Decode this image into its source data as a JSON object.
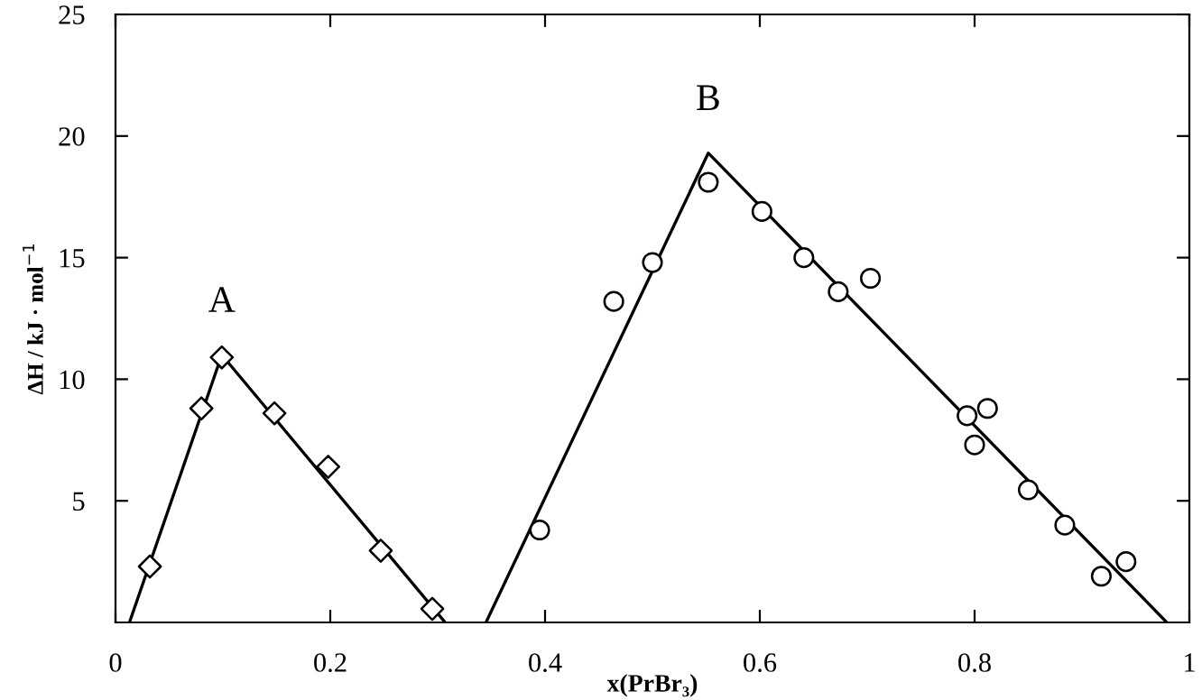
{
  "chart_data": {
    "type": "scatter",
    "xlabel": "x(PrBr₃)",
    "ylabel": "ΔH / kJ · mol$^{−1}$",
    "xlim": [
      0,
      1
    ],
    "ylim": [
      0,
      25
    ],
    "xticks": [
      0,
      0.2,
      0.4,
      0.6,
      0.8,
      1
    ],
    "yticks": [
      5,
      10,
      15,
      20,
      25
    ],
    "grid": false,
    "legend": false,
    "annotations": [
      "A",
      "B"
    ],
    "series": [
      {
        "marker": "diamond",
        "color": "#000000",
        "x": [
          0.032,
          0.08,
          0.099,
          0.148,
          0.198,
          0.247,
          0.295
        ],
        "values": [
          2.3,
          8.8,
          10.9,
          8.6,
          6.4,
          2.95,
          0.56
        ]
      },
      {
        "marker": "circle",
        "color": "#000000",
        "x": [
          0.395,
          0.464,
          0.5,
          0.552,
          0.602,
          0.641,
          0.673,
          0.703,
          0.793,
          0.812,
          0.8,
          0.85,
          0.884,
          0.918,
          0.941
        ],
        "values": [
          3.8,
          13.2,
          14.8,
          18.1,
          16.9,
          15.0,
          13.6,
          14.15,
          8.5,
          8.8,
          7.3,
          5.45,
          4.0,
          1.9,
          2.5
        ]
      },
      {
        "type": "line",
        "marker": "none",
        "line_style": "solid",
        "color": "#000000",
        "x": [
          0.013,
          0.099,
          0.307
        ],
        "values": [
          0,
          11.0,
          0
        ]
      },
      {
        "type": "line",
        "marker": "none",
        "line_style": "solid",
        "color": "#000000",
        "x": [
          0.345,
          0.552,
          0.979
        ],
        "values": [
          0,
          19.3,
          0
        ]
      }
    ]
  }
}
